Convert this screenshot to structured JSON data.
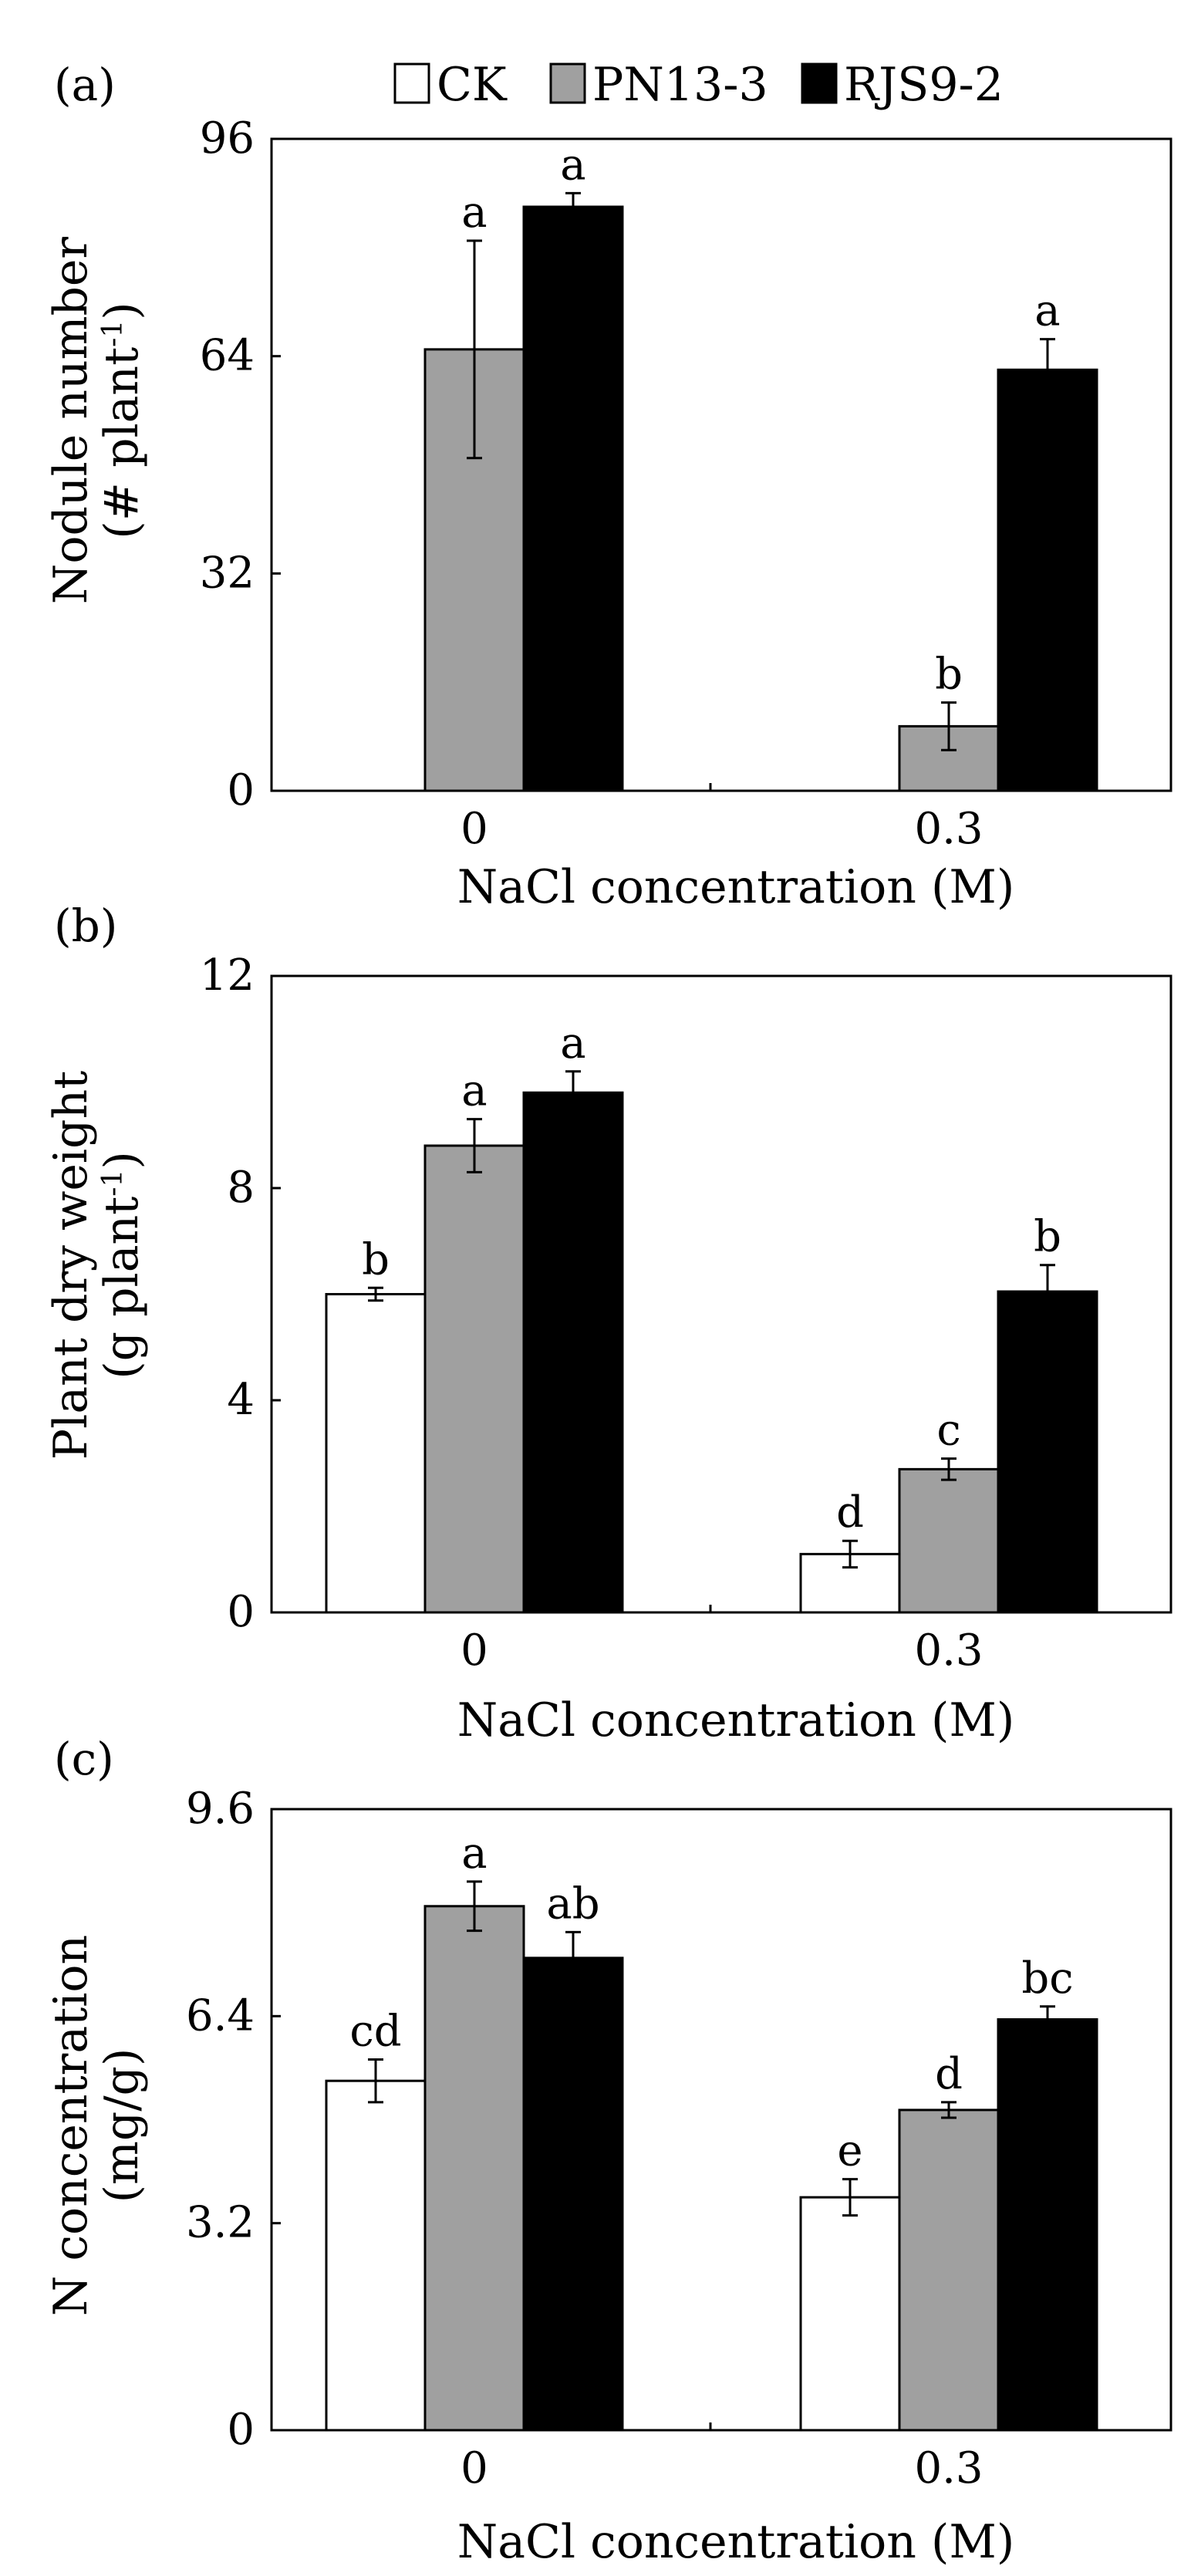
{
  "legend": {
    "series": [
      {
        "name": "CK",
        "color": "#ffffff"
      },
      {
        "name": "PN13-3",
        "color": "#a0a0a0"
      },
      {
        "name": "RJS9-2",
        "color": "#000000"
      }
    ]
  },
  "chart_data": [
    {
      "type": "bar",
      "panel_label": "(a)",
      "categories": [
        "0",
        "0.3"
      ],
      "xlabel": "NaCl concentration (M)",
      "ylabel_line1": "Nodule number",
      "ylabel_line2_base": "(# plant",
      "ylabel_line2_sup": "-1",
      "ylabel_line2_end": ")",
      "ylim": [
        0,
        96
      ],
      "yticks": [
        "0",
        "32",
        "64",
        "96"
      ],
      "series": [
        {
          "name": "CK",
          "values": [
            null,
            null
          ],
          "errors": [
            null,
            null
          ],
          "letters": [
            null,
            null
          ]
        },
        {
          "name": "PN13-3",
          "values": [
            65,
            9.5
          ],
          "errors": [
            16,
            3.5
          ],
          "letters": [
            "a",
            "b"
          ]
        },
        {
          "name": "RJS9-2",
          "values": [
            86,
            62
          ],
          "errors": [
            2,
            4.5
          ],
          "letters": [
            "a",
            "a"
          ]
        }
      ]
    },
    {
      "type": "bar",
      "panel_label": "(b)",
      "categories": [
        "0",
        "0.3"
      ],
      "xlabel": "NaCl concentration (M)",
      "ylabel_line1": "Plant dry weight",
      "ylabel_line2_base": "(g plant",
      "ylabel_line2_sup": "-1",
      "ylabel_line2_end": ")",
      "ylim": [
        0,
        12
      ],
      "yticks": [
        "0",
        "4",
        "8",
        "12"
      ],
      "series": [
        {
          "name": "CK",
          "values": [
            6.0,
            1.1
          ],
          "errors": [
            0.12,
            0.25
          ],
          "letters": [
            "b",
            "d"
          ]
        },
        {
          "name": "PN13-3",
          "values": [
            8.8,
            2.7
          ],
          "errors": [
            0.5,
            0.2
          ],
          "letters": [
            "a",
            "c"
          ]
        },
        {
          "name": "RJS9-2",
          "values": [
            9.8,
            6.05
          ],
          "errors": [
            0.4,
            0.5
          ],
          "letters": [
            "a",
            "b"
          ]
        }
      ]
    },
    {
      "type": "bar",
      "panel_label": "(c)",
      "categories": [
        "0",
        "0.3"
      ],
      "xlabel": "NaCl concentration (M)",
      "ylabel_line1": "N concentration",
      "ylabel_line2_base": "(mg/g)",
      "ylabel_line2_sup": "",
      "ylabel_line2_end": "",
      "ylim": [
        0,
        9.6
      ],
      "yticks": [
        "0",
        "3.2",
        "6.4",
        "9.6"
      ],
      "series": [
        {
          "name": "CK",
          "values": [
            5.4,
            3.6
          ],
          "errors": [
            0.33,
            0.28
          ],
          "letters": [
            "cd",
            "e"
          ]
        },
        {
          "name": "PN13-3",
          "values": [
            8.1,
            4.95
          ],
          "errors": [
            0.38,
            0.12
          ],
          "letters": [
            "a",
            "d"
          ]
        },
        {
          "name": "RJS9-2",
          "values": [
            7.3,
            6.35
          ],
          "errors": [
            0.4,
            0.2
          ],
          "letters": [
            "ab",
            "bc"
          ]
        }
      ]
    }
  ]
}
